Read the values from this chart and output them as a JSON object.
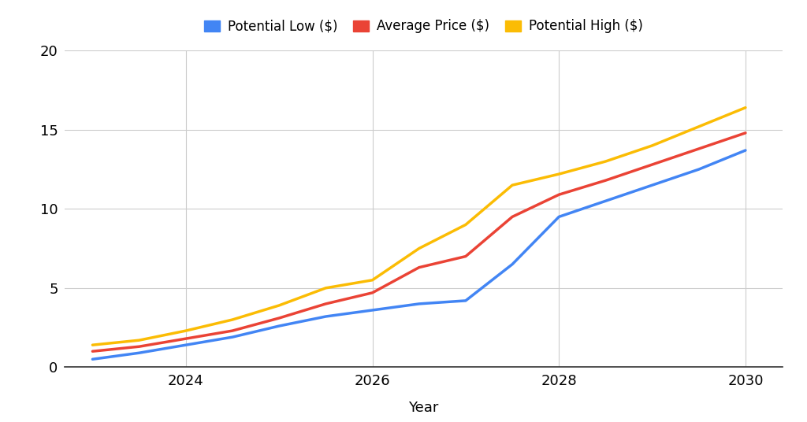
{
  "years": [
    2023,
    2023.5,
    2024,
    2024.5,
    2025,
    2025.5,
    2026,
    2026.5,
    2027,
    2027.5,
    2028,
    2028.5,
    2029,
    2029.5,
    2030
  ],
  "potential_low": [
    0.5,
    0.9,
    1.4,
    1.9,
    2.6,
    3.2,
    3.6,
    4.0,
    4.2,
    6.5,
    9.5,
    10.5,
    11.5,
    12.5,
    13.7
  ],
  "average_price": [
    1.0,
    1.3,
    1.8,
    2.3,
    3.1,
    4.0,
    4.7,
    6.3,
    7.0,
    9.5,
    10.9,
    11.8,
    12.8,
    13.8,
    14.8
  ],
  "potential_high": [
    1.4,
    1.7,
    2.3,
    3.0,
    3.9,
    5.0,
    5.5,
    7.5,
    9.0,
    11.5,
    12.2,
    13.0,
    14.0,
    15.2,
    16.4
  ],
  "low_color": "#4285F4",
  "avg_color": "#EA4335",
  "high_color": "#FBBC04",
  "line_width": 2.5,
  "xlabel": "Year",
  "ylim": [
    0,
    20
  ],
  "yticks": [
    0,
    5,
    10,
    15,
    20
  ],
  "xticks": [
    2024,
    2026,
    2028,
    2030
  ],
  "xlim": [
    2022.7,
    2030.4
  ],
  "legend_labels": [
    "Potential Low ($)",
    "Average Price ($)",
    "Potential High ($)"
  ],
  "bg_color": "#ffffff",
  "grid_color": "#cccccc",
  "spine_color": "#cccccc",
  "tick_label_fontsize": 13,
  "xlabel_fontsize": 13,
  "legend_fontsize": 12
}
